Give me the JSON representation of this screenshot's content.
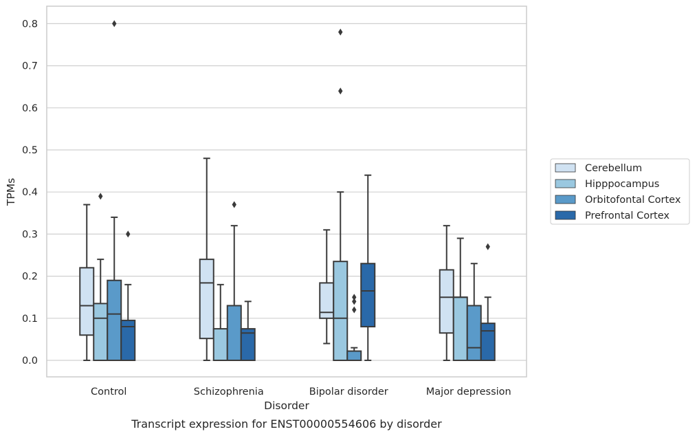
{
  "chart_data": {
    "type": "box",
    "title": "",
    "caption": "Transcript expression for ENST00000554606 by disorder",
    "xlabel": "Disorder",
    "ylabel": "TPMs",
    "ylim": [
      -0.04,
      0.84
    ],
    "yticks": [
      "0.0",
      "0.1",
      "0.2",
      "0.3",
      "0.4",
      "0.5",
      "0.6",
      "0.7",
      "0.8"
    ],
    "grid": "horizontal",
    "legend_position": "right",
    "categories": [
      "Control",
      "Schizophrenia",
      "Bipolar disorder",
      "Major depression"
    ],
    "series": [
      {
        "name": "Cerebellum",
        "color": "#d0e2f2",
        "boxes": [
          {
            "whislo": 0.0,
            "q1": 0.06,
            "med": 0.13,
            "q3": 0.22,
            "whishi": 0.37,
            "fliers": []
          },
          {
            "whislo": 0.0,
            "q1": 0.052,
            "med": 0.184,
            "q3": 0.24,
            "whishi": 0.48,
            "fliers": []
          },
          {
            "whislo": 0.04,
            "q1": 0.1,
            "med": 0.114,
            "q3": 0.184,
            "whishi": 0.31,
            "fliers": []
          },
          {
            "whislo": 0.0,
            "q1": 0.065,
            "med": 0.15,
            "q3": 0.215,
            "whishi": 0.32,
            "fliers": []
          }
        ]
      },
      {
        "name": "Hipppocampus",
        "color": "#9ac8e0",
        "boxes": [
          {
            "whislo": 0.0,
            "q1": 0.0,
            "med": 0.1,
            "q3": 0.135,
            "whishi": 0.24,
            "fliers": [
              0.39
            ]
          },
          {
            "whislo": 0.0,
            "q1": 0.0,
            "med": 0.0,
            "q3": 0.075,
            "whishi": 0.18,
            "fliers": []
          },
          {
            "whislo": 0.0,
            "q1": 0.0,
            "med": 0.1,
            "q3": 0.235,
            "whishi": 0.4,
            "fliers": [
              0.64,
              0.78
            ]
          },
          {
            "whislo": 0.0,
            "q1": 0.0,
            "med": 0.15,
            "q3": 0.15,
            "whishi": 0.29,
            "fliers": []
          }
        ]
      },
      {
        "name": "Orbitofontal Cortex",
        "color": "#5a9ac9",
        "boxes": [
          {
            "whislo": 0.0,
            "q1": 0.0,
            "med": 0.11,
            "q3": 0.19,
            "whishi": 0.34,
            "fliers": [
              0.8
            ]
          },
          {
            "whislo": 0.0,
            "q1": 0.0,
            "med": 0.0,
            "q3": 0.13,
            "whishi": 0.32,
            "fliers": [
              0.37
            ]
          },
          {
            "whislo": 0.0,
            "q1": 0.0,
            "med": 0.0,
            "q3": 0.022,
            "whishi": 0.03,
            "fliers": [
              0.12,
              0.14,
              0.15
            ]
          },
          {
            "whislo": 0.0,
            "q1": 0.0,
            "med": 0.03,
            "q3": 0.13,
            "whishi": 0.23,
            "fliers": []
          }
        ]
      },
      {
        "name": "Prefrontal Cortex",
        "color": "#2a69a9",
        "boxes": [
          {
            "whislo": 0.0,
            "q1": 0.0,
            "med": 0.08,
            "q3": 0.095,
            "whishi": 0.18,
            "fliers": [
              0.3
            ]
          },
          {
            "whislo": 0.0,
            "q1": 0.0,
            "med": 0.065,
            "q3": 0.075,
            "whishi": 0.14,
            "fliers": []
          },
          {
            "whislo": 0.0,
            "q1": 0.08,
            "med": 0.165,
            "q3": 0.23,
            "whishi": 0.44,
            "fliers": []
          },
          {
            "whislo": 0.0,
            "q1": 0.0,
            "med": 0.07,
            "q3": 0.088,
            "whishi": 0.15,
            "fliers": [
              0.27
            ]
          }
        ]
      }
    ]
  }
}
